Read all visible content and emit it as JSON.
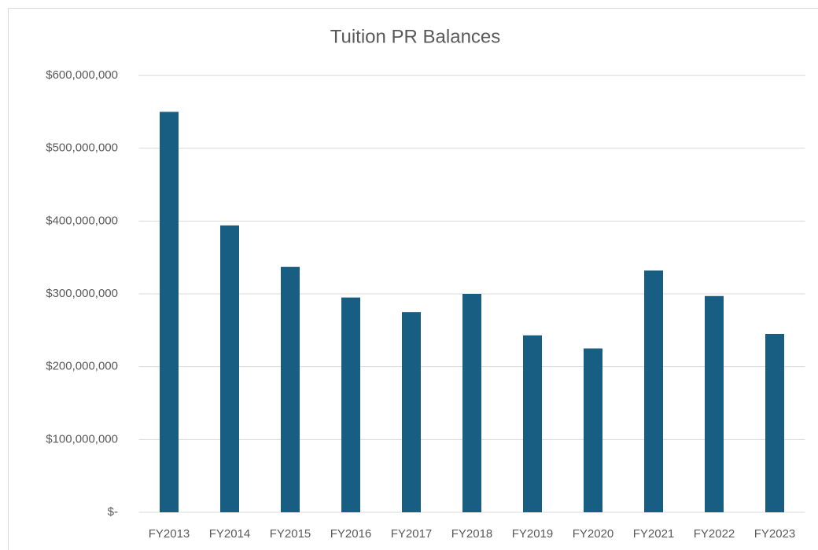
{
  "chart_data": {
    "type": "bar",
    "title": "Tuition PR Balances",
    "categories": [
      "FY2013",
      "FY2014",
      "FY2015",
      "FY2016",
      "FY2017",
      "FY2018",
      "FY2019",
      "FY2020",
      "FY2021",
      "FY2022",
      "FY2023"
    ],
    "values": [
      550000000,
      394000000,
      337000000,
      295000000,
      275000000,
      300000000,
      243000000,
      225000000,
      332000000,
      297000000,
      245000000
    ],
    "color": "#175e82",
    "ylim": [
      0,
      600000000
    ],
    "yticks": [
      {
        "value": 0,
        "label": "$-"
      },
      {
        "value": 100000000,
        "label": "$100,000,000"
      },
      {
        "value": 200000000,
        "label": "$200,000,000"
      },
      {
        "value": 300000000,
        "label": "$300,000,000"
      },
      {
        "value": 400000000,
        "label": "$400,000,000"
      },
      {
        "value": 500000000,
        "label": "$500,000,000"
      },
      {
        "value": 600000000,
        "label": "$600,000,000"
      }
    ],
    "grid": true
  }
}
